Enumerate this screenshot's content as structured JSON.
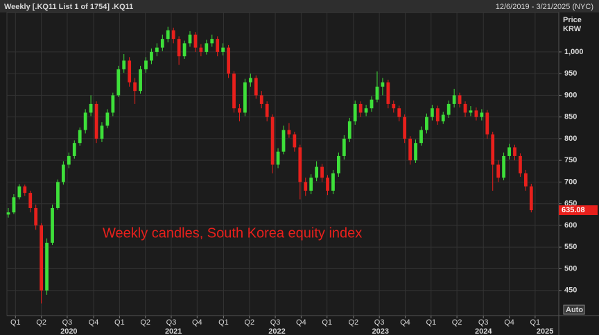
{
  "header": {
    "title": "Weekly [.KQ11 List 1 of 1754] .KQ11",
    "range": "12/6/2019 - 3/21/2025 (NYC)"
  },
  "chart_data": {
    "type": "candlestick",
    "annotation": "Weekly candles, South Korea equity index",
    "y_label": [
      "Price",
      "KRW"
    ],
    "scale_mode": "Auto",
    "up_color": "#3ee03a",
    "down_color": "#e8201c",
    "grid": true,
    "ylim": [
      392,
      1091
    ],
    "yticks": [
      450,
      500,
      550,
      600,
      650,
      700,
      750,
      800,
      850,
      900,
      950,
      {
        "value": 1000,
        "label": "1,000"
      }
    ],
    "xlim": [
      -0.25,
      100
    ],
    "xticks": [
      {
        "value": 1.3,
        "label": "Q1"
      },
      {
        "value": 6.0,
        "label": "Q2"
      },
      {
        "value": 10.7,
        "label": "Q3"
      },
      {
        "value": 15.5,
        "label": "Q4"
      },
      {
        "value": 20.2,
        "label": "Q1"
      },
      {
        "value": 24.9,
        "label": "Q2"
      },
      {
        "value": 29.6,
        "label": "Q3"
      },
      {
        "value": 34.3,
        "label": "Q4"
      },
      {
        "value": 39.1,
        "label": "Q1"
      },
      {
        "value": 43.8,
        "label": "Q2"
      },
      {
        "value": 48.5,
        "label": "Q3"
      },
      {
        "value": 53.2,
        "label": "Q4"
      },
      {
        "value": 57.9,
        "label": "Q1"
      },
      {
        "value": 62.7,
        "label": "Q2"
      },
      {
        "value": 67.4,
        "label": "Q3"
      },
      {
        "value": 72.1,
        "label": "Q4"
      },
      {
        "value": 76.8,
        "label": "Q1"
      },
      {
        "value": 81.5,
        "label": "Q2"
      },
      {
        "value": 86.3,
        "label": "Q3"
      },
      {
        "value": 91.0,
        "label": "Q4"
      },
      {
        "value": 95.7,
        "label": "Q1"
      }
    ],
    "years": [
      {
        "value": 11,
        "label": "2020"
      },
      {
        "value": 30,
        "label": "2021"
      },
      {
        "value": 48.8,
        "label": "2022"
      },
      {
        "value": 67.6,
        "label": "2023"
      },
      {
        "value": 86.3,
        "label": "2024"
      },
      {
        "value": 97.5,
        "label": "2025"
      }
    ],
    "candles": [
      [
        625,
        640,
        618,
        630
      ],
      [
        630,
        672,
        626,
        665
      ],
      [
        665,
        695,
        660,
        690
      ],
      [
        690,
        694,
        668,
        675
      ],
      [
        675,
        680,
        630,
        640
      ],
      [
        640,
        648,
        590,
        600
      ],
      [
        600,
        605,
        420,
        450
      ],
      [
        450,
        570,
        440,
        560
      ],
      [
        560,
        648,
        555,
        640
      ],
      [
        640,
        706,
        636,
        700
      ],
      [
        700,
        748,
        694,
        740
      ],
      [
        740,
        768,
        732,
        760
      ],
      [
        760,
        796,
        754,
        790
      ],
      [
        790,
        826,
        784,
        820
      ],
      [
        820,
        868,
        812,
        860
      ],
      [
        860,
        900,
        852,
        880
      ],
      [
        880,
        886,
        790,
        800
      ],
      [
        800,
        838,
        792,
        830
      ],
      [
        830,
        868,
        824,
        860
      ],
      [
        860,
        906,
        852,
        900
      ],
      [
        900,
        968,
        896,
        960
      ],
      [
        960,
        995,
        952,
        980
      ],
      [
        980,
        988,
        920,
        930
      ],
      [
        930,
        940,
        880,
        910
      ],
      [
        910,
        968,
        904,
        960
      ],
      [
        960,
        988,
        952,
        980
      ],
      [
        980,
        1008,
        972,
        1000
      ],
      [
        1000,
        1020,
        990,
        1010
      ],
      [
        1010,
        1040,
        1002,
        1030
      ],
      [
        1030,
        1058,
        1022,
        1050
      ],
      [
        1050,
        1056,
        1020,
        1030
      ],
      [
        1030,
        1036,
        970,
        990
      ],
      [
        990,
        1026,
        984,
        1020
      ],
      [
        1020,
        1048,
        1012,
        1040
      ],
      [
        1040,
        1046,
        1000,
        1010
      ],
      [
        1010,
        1018,
        990,
        1000
      ],
      [
        1000,
        1028,
        994,
        1020
      ],
      [
        1020,
        1040,
        1012,
        1030
      ],
      [
        1030,
        1036,
        990,
        1000
      ],
      [
        1000,
        1020,
        992,
        1010
      ],
      [
        1010,
        1016,
        940,
        950
      ],
      [
        950,
        956,
        860,
        870
      ],
      [
        870,
        880,
        840,
        860
      ],
      [
        860,
        938,
        852,
        930
      ],
      [
        930,
        950,
        920,
        940
      ],
      [
        940,
        946,
        892,
        900
      ],
      [
        900,
        910,
        870,
        880
      ],
      [
        880,
        886,
        840,
        850
      ],
      [
        850,
        856,
        720,
        740
      ],
      [
        740,
        778,
        732,
        770
      ],
      [
        770,
        830,
        764,
        820
      ],
      [
        820,
        836,
        802,
        810
      ],
      [
        810,
        816,
        770,
        780
      ],
      [
        780,
        786,
        660,
        700
      ],
      [
        700,
        710,
        668,
        680
      ],
      [
        680,
        718,
        672,
        710
      ],
      [
        710,
        748,
        702,
        735
      ],
      [
        735,
        742,
        700,
        710
      ],
      [
        710,
        716,
        670,
        680
      ],
      [
        680,
        728,
        672,
        720
      ],
      [
        720,
        768,
        712,
        760
      ],
      [
        760,
        808,
        752,
        800
      ],
      [
        800,
        848,
        792,
        840
      ],
      [
        840,
        888,
        832,
        880
      ],
      [
        880,
        886,
        850,
        860
      ],
      [
        860,
        878,
        852,
        870
      ],
      [
        870,
        898,
        862,
        890
      ],
      [
        890,
        955,
        884,
        920
      ],
      [
        920,
        940,
        900,
        930
      ],
      [
        930,
        936,
        870,
        880
      ],
      [
        880,
        888,
        860,
        870
      ],
      [
        870,
        876,
        840,
        850
      ],
      [
        850,
        856,
        790,
        800
      ],
      [
        800,
        806,
        740,
        750
      ],
      [
        750,
        798,
        744,
        790
      ],
      [
        790,
        828,
        784,
        820
      ],
      [
        820,
        858,
        812,
        850
      ],
      [
        850,
        878,
        842,
        870
      ],
      [
        870,
        876,
        832,
        840
      ],
      [
        840,
        862,
        834,
        855
      ],
      [
        855,
        888,
        848,
        880
      ],
      [
        880,
        915,
        872,
        900
      ],
      [
        900,
        906,
        872,
        880
      ],
      [
        880,
        886,
        850,
        860
      ],
      [
        860,
        875,
        852,
        865
      ],
      [
        865,
        872,
        842,
        850
      ],
      [
        850,
        868,
        842,
        860
      ],
      [
        860,
        866,
        800,
        810
      ],
      [
        810,
        816,
        680,
        740
      ],
      [
        740,
        750,
        700,
        710
      ],
      [
        710,
        768,
        704,
        760
      ],
      [
        760,
        788,
        752,
        780
      ],
      [
        780,
        786,
        750,
        760
      ],
      [
        760,
        766,
        712,
        720
      ],
      [
        720,
        728,
        680,
        690
      ],
      [
        690,
        696,
        630,
        635.08
      ]
    ]
  }
}
